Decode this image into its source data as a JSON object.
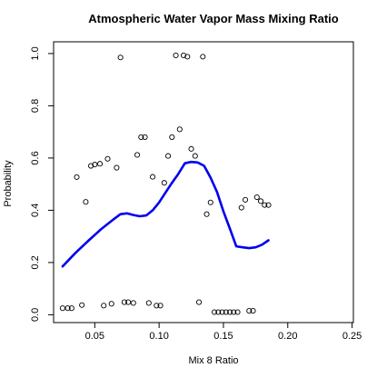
{
  "chart_data": {
    "type": "scatter",
    "title": "Atmospheric Water Vapor Mass Mixing Ratio",
    "xlabel": "Mix 8 Ratio",
    "ylabel": "Probability",
    "xlim": [
      0.018,
      0.251
    ],
    "ylim": [
      -0.03,
      1.045
    ],
    "xticks": [
      0.05,
      0.1,
      0.15,
      0.2,
      0.25
    ],
    "xtick_labels": [
      "0.05",
      "0.10",
      "0.15",
      "0.20",
      "0.25"
    ],
    "yticks": [
      0.0,
      0.2,
      0.4,
      0.6,
      0.8,
      1.0
    ],
    "ytick_labels": [
      "0.0",
      "0.2",
      "0.4",
      "0.6",
      "0.8",
      "1.0"
    ],
    "grid": false,
    "legend": "none",
    "point_color": "#000000",
    "line_color": "#0000ee",
    "points": [
      {
        "x": 0.025,
        "y": 0.025
      },
      {
        "x": 0.029,
        "y": 0.025
      },
      {
        "x": 0.032,
        "y": 0.025
      },
      {
        "x": 0.036,
        "y": 0.527
      },
      {
        "x": 0.04,
        "y": 0.037
      },
      {
        "x": 0.043,
        "y": 0.432
      },
      {
        "x": 0.047,
        "y": 0.57
      },
      {
        "x": 0.05,
        "y": 0.575
      },
      {
        "x": 0.054,
        "y": 0.578
      },
      {
        "x": 0.057,
        "y": 0.035
      },
      {
        "x": 0.06,
        "y": 0.597
      },
      {
        "x": 0.063,
        "y": 0.042
      },
      {
        "x": 0.067,
        "y": 0.563
      },
      {
        "x": 0.07,
        "y": 0.985
      },
      {
        "x": 0.073,
        "y": 0.048
      },
      {
        "x": 0.076,
        "y": 0.048
      },
      {
        "x": 0.08,
        "y": 0.045
      },
      {
        "x": 0.083,
        "y": 0.612
      },
      {
        "x": 0.086,
        "y": 0.68
      },
      {
        "x": 0.089,
        "y": 0.68
      },
      {
        "x": 0.092,
        "y": 0.045
      },
      {
        "x": 0.095,
        "y": 0.528
      },
      {
        "x": 0.098,
        "y": 0.035
      },
      {
        "x": 0.101,
        "y": 0.035
      },
      {
        "x": 0.104,
        "y": 0.505
      },
      {
        "x": 0.107,
        "y": 0.608
      },
      {
        "x": 0.11,
        "y": 0.68
      },
      {
        "x": 0.113,
        "y": 0.993
      },
      {
        "x": 0.116,
        "y": 0.71
      },
      {
        "x": 0.119,
        "y": 0.993
      },
      {
        "x": 0.122,
        "y": 0.988
      },
      {
        "x": 0.125,
        "y": 0.635
      },
      {
        "x": 0.128,
        "y": 0.608
      },
      {
        "x": 0.131,
        "y": 0.048
      },
      {
        "x": 0.134,
        "y": 0.988
      },
      {
        "x": 0.137,
        "y": 0.385
      },
      {
        "x": 0.14,
        "y": 0.43
      },
      {
        "x": 0.143,
        "y": 0.01
      },
      {
        "x": 0.146,
        "y": 0.01
      },
      {
        "x": 0.149,
        "y": 0.01
      },
      {
        "x": 0.152,
        "y": 0.01
      },
      {
        "x": 0.155,
        "y": 0.01
      },
      {
        "x": 0.158,
        "y": 0.01
      },
      {
        "x": 0.161,
        "y": 0.01
      },
      {
        "x": 0.164,
        "y": 0.41
      },
      {
        "x": 0.167,
        "y": 0.44
      },
      {
        "x": 0.17,
        "y": 0.015
      },
      {
        "x": 0.173,
        "y": 0.015
      },
      {
        "x": 0.176,
        "y": 0.45
      },
      {
        "x": 0.179,
        "y": 0.435
      },
      {
        "x": 0.182,
        "y": 0.42
      },
      {
        "x": 0.185,
        "y": 0.42
      }
    ],
    "smooth_line": {
      "x": [
        0.025,
        0.035,
        0.045,
        0.055,
        0.065,
        0.07,
        0.075,
        0.08,
        0.085,
        0.09,
        0.095,
        0.1,
        0.105,
        0.11,
        0.115,
        0.12,
        0.125,
        0.13,
        0.135,
        0.14,
        0.145,
        0.15,
        0.155,
        0.16,
        0.165,
        0.17,
        0.175,
        0.18,
        0.185
      ],
      "y": [
        0.185,
        0.237,
        0.283,
        0.328,
        0.367,
        0.385,
        0.388,
        0.382,
        0.377,
        0.38,
        0.4,
        0.43,
        0.468,
        0.505,
        0.54,
        0.58,
        0.585,
        0.583,
        0.57,
        0.525,
        0.47,
        0.395,
        0.33,
        0.262,
        0.258,
        0.255,
        0.258,
        0.268,
        0.285
      ]
    }
  }
}
